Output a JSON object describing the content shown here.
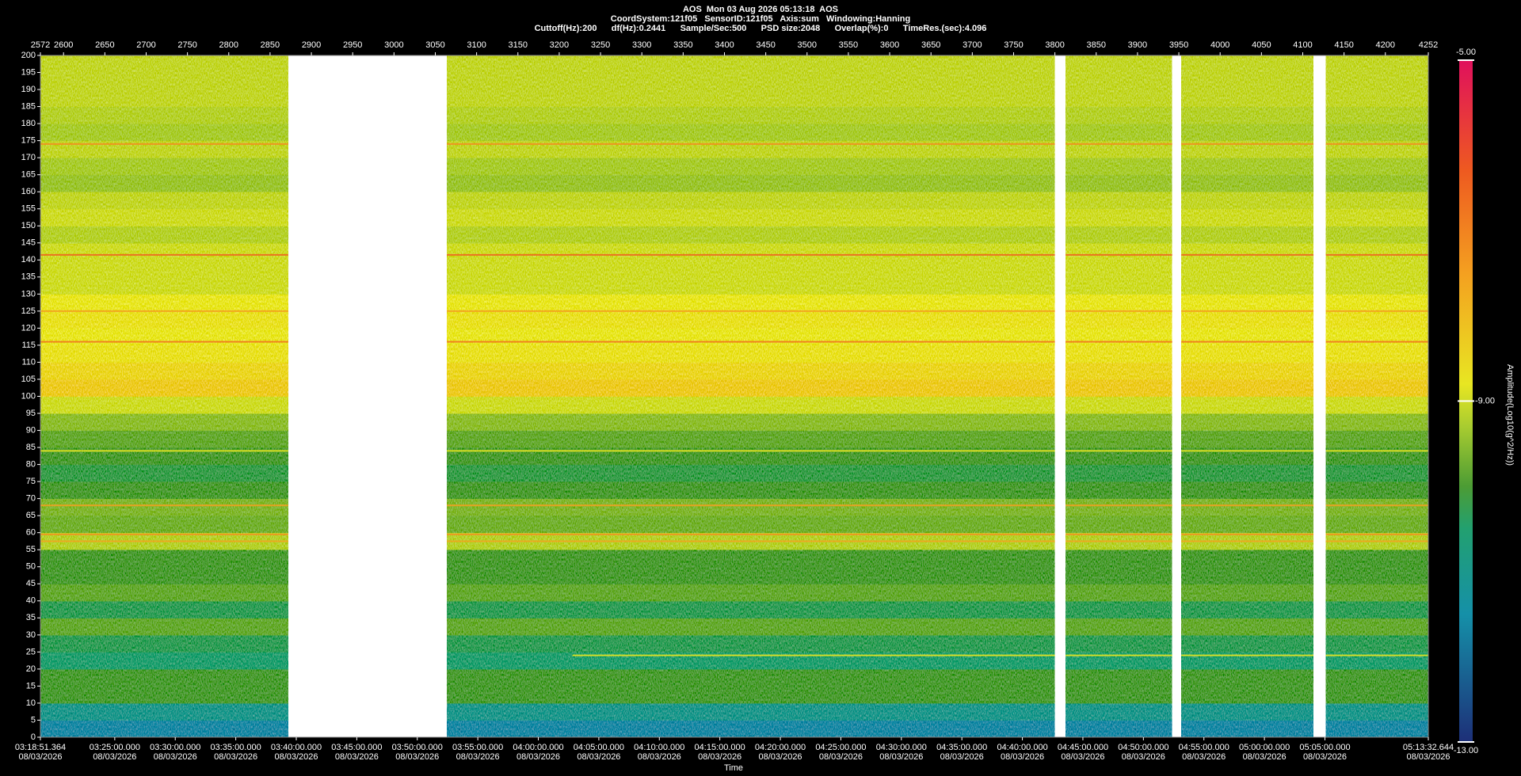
{
  "chart_data": {
    "type": "spectrogram",
    "title": "AOS  Mon 03 Aug 2026 05:13:18  AOS",
    "info": [
      "CoordSystem:121f05   SensorID:121f05   Axis:sum   Windowing:Hanning",
      "Cuttoff(Hz):200      df(Hz):0.2441      Sample/Sec:500      PSD size:2048      Overlap(%):0      TimeRes.(sec):4.096"
    ],
    "xlabel": "Time",
    "colorbar_label": "Amplitude(Log10(g^2/Hz))",
    "background": "#000000",
    "xlim": [
      2572,
      4252
    ],
    "xticks": [
      2572,
      2600,
      2650,
      2700,
      2750,
      2800,
      2850,
      2900,
      2950,
      3000,
      3050,
      3100,
      3150,
      3200,
      3250,
      3300,
      3350,
      3400,
      3450,
      3500,
      3550,
      3600,
      3650,
      3700,
      3750,
      3800,
      3850,
      3900,
      3950,
      4000,
      4050,
      4100,
      4150,
      4200,
      4252
    ],
    "time_ticks": [
      {
        "value": 2572,
        "label": "03:18:51.364",
        "date": "08/03/2026"
      },
      {
        "value": 2662,
        "label": "03:25:00.000",
        "date": "08/03/2026"
      },
      {
        "value": 2735.24,
        "label": "03:30:00.000",
        "date": "08/03/2026"
      },
      {
        "value": 2808.48,
        "label": "03:35:00.000",
        "date": "08/03/2026"
      },
      {
        "value": 2881.73,
        "label": "03:40:00.000",
        "date": "08/03/2026"
      },
      {
        "value": 2954.97,
        "label": "03:45:00.000",
        "date": "08/03/2026"
      },
      {
        "value": 3028.21,
        "label": "03:50:00.000",
        "date": "08/03/2026"
      },
      {
        "value": 3101.45,
        "label": "03:55:00.000",
        "date": "08/03/2026"
      },
      {
        "value": 3174.7,
        "label": "04:00:00.000",
        "date": "08/03/2026"
      },
      {
        "value": 3247.94,
        "label": "04:05:00.000",
        "date": "08/03/2026"
      },
      {
        "value": 3321.18,
        "label": "04:10:00.000",
        "date": "08/03/2026"
      },
      {
        "value": 3394.42,
        "label": "04:15:00.000",
        "date": "08/03/2026"
      },
      {
        "value": 3467.66,
        "label": "04:20:00.000",
        "date": "08/03/2026"
      },
      {
        "value": 3540.91,
        "label": "04:25:00.000",
        "date": "08/03/2026"
      },
      {
        "value": 3614.15,
        "label": "04:30:00.000",
        "date": "08/03/2026"
      },
      {
        "value": 3687.39,
        "label": "04:35:00.000",
        "date": "08/03/2026"
      },
      {
        "value": 3760.63,
        "label": "04:40:00.000",
        "date": "08/03/2026"
      },
      {
        "value": 3833.88,
        "label": "04:45:00.000",
        "date": "08/03/2026"
      },
      {
        "value": 3907.12,
        "label": "04:50:00.000",
        "date": "08/03/2026"
      },
      {
        "value": 3980.36,
        "label": "04:55:00.000",
        "date": "08/03/2026"
      },
      {
        "value": 4053.6,
        "label": "05:00:00.000",
        "date": "08/03/2026"
      },
      {
        "value": 4126.84,
        "label": "05:05:00.000",
        "date": "08/03/2026"
      },
      {
        "value": 4252,
        "label": "05:13:32.644",
        "date": "08/03/2026"
      }
    ],
    "ylim": [
      0,
      200
    ],
    "yticks": [
      0,
      5,
      10,
      15,
      20,
      25,
      30,
      35,
      40,
      45,
      50,
      55,
      60,
      65,
      70,
      75,
      80,
      85,
      90,
      95,
      100,
      105,
      110,
      115,
      120,
      125,
      130,
      135,
      140,
      145,
      150,
      155,
      160,
      165,
      170,
      175,
      180,
      185,
      190,
      195,
      200
    ],
    "freq_bins": [
      0,
      5,
      10,
      15,
      20,
      25,
      30,
      35,
      40,
      45,
      50,
      55,
      60,
      65,
      70,
      75,
      80,
      85,
      90,
      95,
      100,
      105,
      110,
      115,
      120,
      125,
      130,
      135,
      140,
      145,
      150,
      155,
      160,
      165,
      170,
      175,
      180,
      185,
      190,
      195,
      200
    ],
    "amplitude": [
      -11.6,
      -11,
      -10,
      -10,
      -10.5,
      -10.3,
      -9.8,
      -10.3,
      -9.8,
      -10,
      -10,
      -9.2,
      -9.7,
      -9.6,
      -10,
      -10.2,
      -10,
      -9.8,
      -9.5,
      -9,
      -8.3,
      -8.5,
      -8.7,
      -8.8,
      -8.7,
      -8.8,
      -9,
      -9,
      -9,
      -9.2,
      -9,
      -9.1,
      -9.4,
      -9.3,
      -9.1,
      -9.3,
      -9.2,
      -9.1,
      -9.1,
      -9.1
    ],
    "segments": [
      [
        2572,
        2872
      ],
      [
        3064,
        3800
      ],
      [
        3813,
        3942
      ],
      [
        3953,
        4113
      ],
      [
        4128,
        4252
      ]
    ],
    "lines": [
      {
        "freq": 174,
        "amplitude": -7.2
      },
      {
        "freq": 141.5,
        "amplitude": -6.5
      },
      {
        "freq": 125,
        "amplitude": -7.5
      },
      {
        "freq": 116,
        "amplitude": -6.8
      },
      {
        "freq": 84,
        "amplitude": -8.8
      },
      {
        "freq": 68,
        "amplitude": -7.5
      },
      {
        "freq": 59.5,
        "amplitude": -7.3
      },
      {
        "freq": 57.5,
        "amplitude": -7.6
      },
      {
        "freq": 24,
        "amplitude": -8.8,
        "start": 3216
      }
    ],
    "clim": [
      -13,
      -5
    ],
    "cticks": [
      {
        "value": -5,
        "label": "-5.00"
      },
      {
        "value": -9,
        "label": "-9.00"
      },
      {
        "value": -13,
        "label": "-13.00"
      }
    ],
    "colorscale": [
      [
        -13,
        "#1d2f78"
      ],
      [
        -11.5,
        "#1590a8"
      ],
      [
        -10.5,
        "#22a070"
      ],
      [
        -10,
        "#4c9c34"
      ],
      [
        -9.3,
        "#a8cc30"
      ],
      [
        -8.8,
        "#e8e622"
      ],
      [
        -7.5,
        "#f4a020"
      ],
      [
        -6.3,
        "#ee5a20"
      ],
      [
        -5,
        "#e0105c"
      ]
    ]
  }
}
